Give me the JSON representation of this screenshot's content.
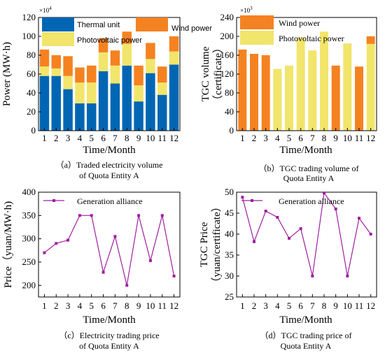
{
  "chart_data": [
    {
      "id": "a",
      "type": "bar",
      "stacked": true,
      "categories": [
        "1",
        "2",
        "3",
        "4",
        "5",
        "6",
        "7",
        "8",
        "9",
        "10",
        "11",
        "12"
      ],
      "series": [
        {
          "name": "Thermal unit",
          "color": "#0066b3",
          "values": [
            58,
            58,
            44,
            29,
            29,
            63,
            50,
            69,
            31,
            61,
            38,
            70
          ]
        },
        {
          "name": "Photovoltaic power",
          "color": "#f2e56b",
          "values": [
            10,
            8,
            14,
            22,
            22,
            20,
            19,
            23,
            17,
            15,
            13,
            14
          ]
        },
        {
          "name": "Wind power",
          "color": "#f58220",
          "values": [
            18,
            14,
            21,
            16,
            18,
            15,
            16,
            13,
            21,
            17,
            17,
            16
          ]
        }
      ],
      "ylim": [
        0,
        120
      ],
      "yticks": [
        "0",
        "20",
        "40",
        "60",
        "80",
        "100",
        "120"
      ],
      "exponent": "×10",
      "exponent_power": "4",
      "ylabel": "Power (MW·h)",
      "xlabel": "Time/Month",
      "caption_line1": "（a）Traded electricity volume",
      "caption_line2": "of Quota Entity A"
    },
    {
      "id": "b",
      "type": "bar",
      "categories": [
        "1",
        "2",
        "3",
        "4",
        "5",
        "6",
        "7",
        "8",
        "9",
        "10",
        "11",
        "12"
      ],
      "values": [
        172,
        163,
        160,
        131,
        138,
        197,
        170,
        210,
        138,
        185,
        136,
        184
      ],
      "bar_types": [
        "Wind power",
        "Wind power",
        "Wind power",
        "Photovoltaic power",
        "Photovoltaic power",
        "Photovoltaic power",
        "Photovoltaic power",
        "Photovoltaic power",
        "Wind power",
        "Photovoltaic power",
        "Wind power",
        "Photovoltaic power"
      ],
      "cap": {
        "index": 11,
        "top": 200,
        "type": "Wind power"
      },
      "series": [
        {
          "name": "Wind power",
          "color": "#f58220"
        },
        {
          "name": "Photovoltaic power",
          "color": "#f2e56b"
        }
      ],
      "ylim": [
        0,
        240
      ],
      "yticks": [
        "0",
        "40",
        "80",
        "120",
        "160",
        "200",
        "240"
      ],
      "exponent": "×10",
      "exponent_power": "3",
      "ylabel_line1": "TGC volume",
      "ylabel_line2": "（certificate）",
      "xlabel": "Time/Month",
      "caption_line1": "（b）TGC trading volume of",
      "caption_line2": "Quota Entity A"
    },
    {
      "id": "c",
      "type": "line",
      "x": [
        "1",
        "2",
        "3",
        "4",
        "5",
        "6",
        "7",
        "8",
        "9",
        "10",
        "11",
        "12"
      ],
      "series": [
        {
          "name": "Generation alliance",
          "color": "#a020a0",
          "values": [
            270,
            290,
            297,
            350,
            350,
            228,
            305,
            200,
            350,
            253,
            350,
            220
          ]
        }
      ],
      "ylim": [
        175,
        400
      ],
      "yticks": [
        "200",
        "250",
        "300",
        "350",
        "400"
      ],
      "ylabel": "Price（yuan/MW·h)",
      "xlabel": "Time/Month",
      "caption_line1": "（c）Electricity trading price",
      "caption_line2": "of Quota Entity A"
    },
    {
      "id": "d",
      "type": "line",
      "x": [
        "1",
        "2",
        "3",
        "4",
        "5",
        "6",
        "7",
        "8",
        "9",
        "10",
        "11",
        "12"
      ],
      "series": [
        {
          "name": "Generation alliance",
          "color": "#a020a0",
          "values": [
            48.8,
            38.2,
            45.5,
            44,
            39,
            41.3,
            30,
            49.8,
            46,
            30,
            43.8,
            40
          ]
        }
      ],
      "ylim": [
        25,
        50
      ],
      "yticks": [
        "25",
        "30",
        "35",
        "40",
        "45",
        "50"
      ],
      "ylabel_line1": "TGC Price",
      "ylabel_line2": "（yuan/certificate）",
      "xlabel": "Time/Month",
      "caption_line1": "（d）TGC trading price of",
      "caption_line2": "Quota Entity A"
    }
  ]
}
